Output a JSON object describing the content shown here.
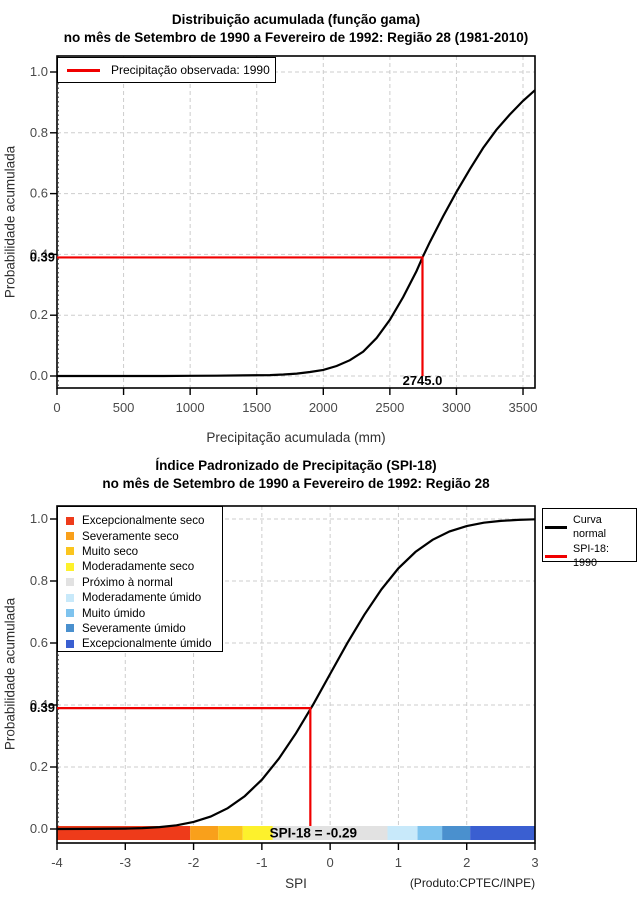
{
  "page": {
    "background": "#FFFFFF",
    "red_accent": "#F00000"
  },
  "chart_data": [
    {
      "type": "line",
      "title": "Distribuição acumulada (função gama)",
      "subtitle": "no mês de Setembro de 1990 a Fevereiro de 1992: Região 28 (1981-2010)",
      "xlabel": "Precipitação acumulada (mm)",
      "ylabel": "Probabilidade acumulada",
      "xlim": [
        0,
        3590
      ],
      "ylim": [
        0,
        1
      ],
      "x_ticks": [
        "0",
        "500",
        "1000",
        "1500",
        "2000",
        "2500",
        "3000",
        "3500"
      ],
      "y_ticks": [
        "0.0",
        "0.2",
        "0.4",
        "0.6",
        "0.8",
        "1.0"
      ],
      "grid": "dashed-lightgray",
      "legend_position": "top-left-inside",
      "legend": [
        {
          "label": "Precipitação observada: 1990",
          "color": "#F00000"
        }
      ],
      "series": [
        {
          "name": "Distribuição gama acumulada",
          "color": "#000000",
          "points": [
            [
              0,
              0
            ],
            [
              200,
              0
            ],
            [
              400,
              0
            ],
            [
              600,
              0
            ],
            [
              800,
              0
            ],
            [
              1000,
              0.0005
            ],
            [
              1200,
              0.001
            ],
            [
              1400,
              0.002
            ],
            [
              1600,
              0.003
            ],
            [
              1700,
              0.005
            ],
            [
              1800,
              0.008
            ],
            [
              1900,
              0.013
            ],
            [
              2000,
              0.02
            ],
            [
              2100,
              0.033
            ],
            [
              2200,
              0.052
            ],
            [
              2300,
              0.08
            ],
            [
              2400,
              0.125
            ],
            [
              2500,
              0.185
            ],
            [
              2600,
              0.26
            ],
            [
              2700,
              0.345
            ],
            [
              2745,
              0.39
            ],
            [
              2800,
              0.44
            ],
            [
              2900,
              0.525
            ],
            [
              3000,
              0.605
            ],
            [
              3100,
              0.68
            ],
            [
              3200,
              0.75
            ],
            [
              3300,
              0.81
            ],
            [
              3400,
              0.86
            ],
            [
              3500,
              0.905
            ],
            [
              3590,
              0.94
            ]
          ]
        }
      ],
      "annotation": {
        "observed_precipitation_mm": 2745.0,
        "cumulative_probability": 0.39,
        "prob_label": "0.39",
        "value_label": "2745.0",
        "line_color": "#F00000"
      }
    },
    {
      "type": "line",
      "title": "Índice Padronizado de Precipitação (SPI-18)",
      "subtitle": "no mês de Setembro de 1990 a Fevereiro de 1992: Região 28",
      "xlabel": "SPI",
      "ylabel": "Probabilidade acumulada",
      "footnote": "(Produto:CPTEC/INPE)",
      "xlim": [
        -4,
        3
      ],
      "ylim": [
        0,
        1
      ],
      "x_ticks": [
        "-4",
        "-3",
        "-2",
        "-1",
        "0",
        "1",
        "2",
        "3"
      ],
      "y_ticks": [
        "0.0",
        "0.2",
        "0.4",
        "0.6",
        "0.8",
        "1.0"
      ],
      "grid": "dashed-lightgray",
      "legend_right": [
        {
          "label": "Curva\nnormal",
          "color": "#000000"
        },
        {
          "label": "SPI-18: 1990",
          "color": "#F00000"
        }
      ],
      "category_legend": [
        {
          "label": "Excepcionalmente seco",
          "color": "#EE3B1A"
        },
        {
          "label": "Severamente seco",
          "color": "#F9A01B"
        },
        {
          "label": "Muito seco",
          "color": "#FBC51E"
        },
        {
          "label": "Moderadamente seco",
          "color": "#FDF12C"
        },
        {
          "label": "Próximo à normal",
          "color": "#E2E2E2"
        },
        {
          "label": "Moderadamente úmido",
          "color": "#C8E9FA"
        },
        {
          "label": "Muito úmido",
          "color": "#7EC3EE"
        },
        {
          "label": "Severamente úmido",
          "color": "#4A90CE"
        },
        {
          "label": "Excepcionalmente úmido",
          "color": "#3A5FD1"
        }
      ],
      "colorbar_segments": [
        {
          "from": -4.0,
          "to": -2.05,
          "color": "#EE3B1A"
        },
        {
          "from": -2.05,
          "to": -1.64,
          "color": "#F9A01B"
        },
        {
          "from": -1.64,
          "to": -1.28,
          "color": "#FBC51E"
        },
        {
          "from": -1.28,
          "to": -0.84,
          "color": "#FDF12C"
        },
        {
          "from": -0.84,
          "to": 0.84,
          "color": "#E2E2E2"
        },
        {
          "from": 0.84,
          "to": 1.28,
          "color": "#C8E9FA"
        },
        {
          "from": 1.28,
          "to": 1.64,
          "color": "#7EC3EE"
        },
        {
          "from": 1.64,
          "to": 2.05,
          "color": "#4A90CE"
        },
        {
          "from": 2.05,
          "to": 3.0,
          "color": "#3A5FD1"
        }
      ],
      "series": [
        {
          "name": "Curva normal",
          "color": "#000000",
          "points": [
            [
              -4,
              0.0
            ],
            [
              -3.5,
              0.0002
            ],
            [
              -3,
              0.0013
            ],
            [
              -2.75,
              0.003
            ],
            [
              -2.5,
              0.006
            ],
            [
              -2.25,
              0.012
            ],
            [
              -2,
              0.023
            ],
            [
              -1.75,
              0.04
            ],
            [
              -1.5,
              0.067
            ],
            [
              -1.25,
              0.106
            ],
            [
              -1,
              0.159
            ],
            [
              -0.75,
              0.227
            ],
            [
              -0.5,
              0.309
            ],
            [
              -0.29,
              0.386
            ],
            [
              -0.25,
              0.401
            ],
            [
              0,
              0.5
            ],
            [
              0.25,
              0.599
            ],
            [
              0.5,
              0.691
            ],
            [
              0.75,
              0.773
            ],
            [
              1,
              0.841
            ],
            [
              1.25,
              0.894
            ],
            [
              1.5,
              0.933
            ],
            [
              1.75,
              0.96
            ],
            [
              2,
              0.977
            ],
            [
              2.25,
              0.988
            ],
            [
              2.5,
              0.994
            ],
            [
              2.75,
              0.997
            ],
            [
              3,
              0.999
            ]
          ]
        }
      ],
      "annotation": {
        "spi_value": -0.29,
        "cumulative_probability": 0.39,
        "prob_label": "0.39",
        "bar_label": "SPI-18 = -0.29",
        "line_color": "#F00000"
      }
    }
  ]
}
